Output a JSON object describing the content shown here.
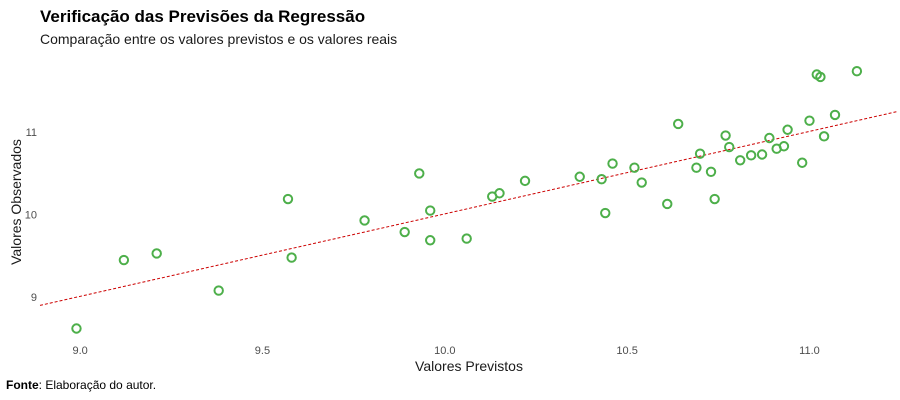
{
  "chart_data": {
    "type": "scatter",
    "title": "Verificação das Previsões da Regressão",
    "subtitle": "Comparação entre os valores previstos e os valores reais",
    "xlabel": "Valores Previstos",
    "ylabel": "Valores Observados",
    "xlim": [
      8.89,
      11.24
    ],
    "ylim": [
      8.42,
      11.9
    ],
    "xticks": [
      "9.0",
      "9.5",
      "10.0",
      "10.5",
      "11.0"
    ],
    "yticks": [
      "9",
      "10",
      "11"
    ],
    "grid": false,
    "legend": "none",
    "caption_label": "Fonte",
    "caption_text": ": Elaboração do autor.",
    "fit_line": {
      "style": "dashed",
      "color": "#cc0000",
      "points": [
        [
          8.89,
          8.9
        ],
        [
          11.24,
          11.25
        ]
      ]
    },
    "point_color": "#4daf4a",
    "points": [
      [
        8.99,
        8.62
      ],
      [
        9.12,
        9.45
      ],
      [
        9.21,
        9.53
      ],
      [
        9.38,
        9.08
      ],
      [
        9.57,
        10.19
      ],
      [
        9.58,
        9.48
      ],
      [
        9.78,
        9.93
      ],
      [
        9.89,
        9.79
      ],
      [
        9.93,
        10.5
      ],
      [
        9.96,
        10.05
      ],
      [
        9.96,
        9.69
      ],
      [
        10.06,
        9.71
      ],
      [
        10.13,
        10.22
      ],
      [
        10.15,
        10.26
      ],
      [
        10.22,
        10.41
      ],
      [
        10.37,
        10.46
      ],
      [
        10.43,
        10.43
      ],
      [
        10.44,
        10.02
      ],
      [
        10.46,
        10.62
      ],
      [
        10.52,
        10.57
      ],
      [
        10.54,
        10.39
      ],
      [
        10.61,
        10.13
      ],
      [
        10.64,
        11.1
      ],
      [
        10.69,
        10.57
      ],
      [
        10.7,
        10.74
      ],
      [
        10.73,
        10.52
      ],
      [
        10.74,
        10.19
      ],
      [
        10.77,
        10.96
      ],
      [
        10.78,
        10.82
      ],
      [
        10.81,
        10.66
      ],
      [
        10.84,
        10.72
      ],
      [
        10.87,
        10.73
      ],
      [
        10.89,
        10.93
      ],
      [
        10.91,
        10.8
      ],
      [
        10.93,
        10.83
      ],
      [
        10.94,
        11.03
      ],
      [
        10.98,
        10.63
      ],
      [
        11.0,
        11.14
      ],
      [
        11.02,
        11.7
      ],
      [
        11.03,
        11.67
      ],
      [
        11.04,
        10.95
      ],
      [
        11.07,
        11.21
      ],
      [
        11.13,
        11.74
      ]
    ]
  }
}
